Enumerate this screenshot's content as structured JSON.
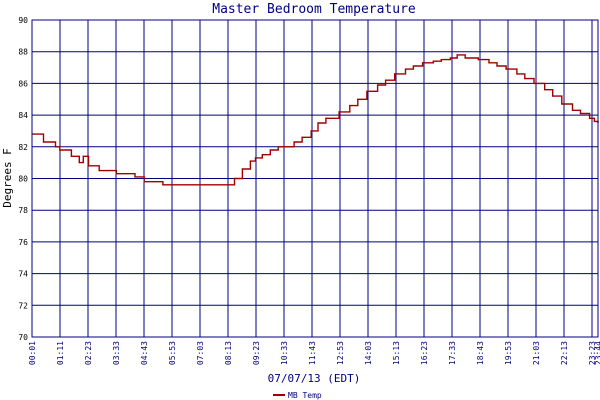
{
  "chart_data": {
    "type": "line",
    "title": "Master Bedroom Temperature",
    "xlabel": "07/07/13 (EDT)",
    "ylabel": "Degrees F",
    "ylim": [
      70,
      90
    ],
    "yticks": [
      70,
      72,
      74,
      76,
      78,
      80,
      82,
      84,
      86,
      88,
      90
    ],
    "xticks": [
      "00:01",
      "01:11",
      "02:23",
      "03:33",
      "04:43",
      "05:53",
      "07:03",
      "08:13",
      "09:23",
      "10:33",
      "11:43",
      "12:53",
      "14:03",
      "15:13",
      "16:23",
      "17:33",
      "18:43",
      "19:53",
      "21:03",
      "22:13",
      "23:23",
      "23:44"
    ],
    "grid": true,
    "legend_position": "bottom-center",
    "series": [
      {
        "name": "MB Temp",
        "color": "#a00000",
        "x": [
          "00:01",
          "00:30",
          "01:00",
          "01:11",
          "01:40",
          "02:00",
          "02:10",
          "02:23",
          "02:50",
          "03:10",
          "03:33",
          "04:00",
          "04:20",
          "04:43",
          "05:10",
          "05:30",
          "05:53",
          "06:30",
          "07:03",
          "07:30",
          "08:00",
          "08:13",
          "08:30",
          "08:50",
          "09:10",
          "09:23",
          "09:40",
          "10:00",
          "10:20",
          "10:33",
          "11:00",
          "11:20",
          "11:43",
          "12:00",
          "12:20",
          "12:53",
          "13:20",
          "13:40",
          "14:03",
          "14:30",
          "14:50",
          "15:13",
          "15:40",
          "16:00",
          "16:23",
          "16:50",
          "17:10",
          "17:33",
          "17:50",
          "18:10",
          "18:43",
          "19:10",
          "19:30",
          "19:53",
          "20:20",
          "20:40",
          "21:03",
          "21:30",
          "21:50",
          "22:13",
          "22:40",
          "23:00",
          "23:23",
          "23:35",
          "23:44"
        ],
        "values": [
          82.8,
          82.3,
          82.0,
          81.8,
          81.4,
          81.0,
          81.4,
          80.8,
          80.5,
          80.5,
          80.3,
          80.3,
          80.1,
          79.8,
          79.8,
          79.6,
          79.6,
          79.6,
          79.6,
          79.6,
          79.6,
          79.6,
          80.0,
          80.6,
          81.1,
          81.3,
          81.5,
          81.8,
          82.0,
          82.0,
          82.3,
          82.6,
          83.0,
          83.5,
          83.8,
          84.2,
          84.6,
          85.0,
          85.5,
          85.9,
          86.2,
          86.6,
          86.9,
          87.1,
          87.3,
          87.4,
          87.5,
          87.6,
          87.8,
          87.6,
          87.5,
          87.3,
          87.1,
          86.9,
          86.6,
          86.3,
          86.0,
          85.6,
          85.2,
          84.7,
          84.3,
          84.1,
          83.8,
          83.6,
          83.5
        ]
      }
    ]
  }
}
